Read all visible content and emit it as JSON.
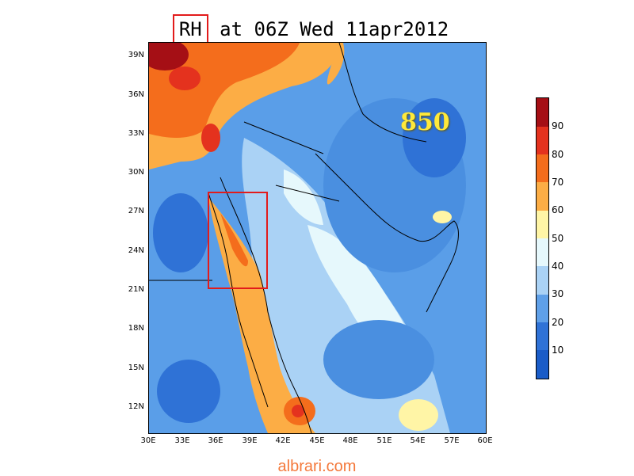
{
  "title": {
    "variable": "RH",
    "rest": " at 06Z Wed 11apr2012"
  },
  "level_label": "850",
  "lat_labels": [
    "39N",
    "36N",
    "33N",
    "30N",
    "27N",
    "24N",
    "21N",
    "18N",
    "15N",
    "12N"
  ],
  "lon_labels": [
    "30E",
    "33E",
    "36E",
    "39E",
    "42E",
    "45E",
    "48E",
    "51E",
    "54E",
    "57E",
    "60E"
  ],
  "colorbar": {
    "labels": [
      "90",
      "80",
      "70",
      "60",
      "50",
      "40",
      "30",
      "20",
      "10"
    ],
    "colors": [
      "#a50f15",
      "#e4321e",
      "#f46d1c",
      "#fcad45",
      "#fff5a6",
      "#e6f8fc",
      "#aad2f5",
      "#5fa0e8",
      "#2f72d6",
      "#1a5cc8"
    ]
  },
  "footer": "albrari.com",
  "colors": {
    "highlight": "#e21b1b",
    "level_label": "#ffe93a",
    "footer": "#f4793b"
  }
}
